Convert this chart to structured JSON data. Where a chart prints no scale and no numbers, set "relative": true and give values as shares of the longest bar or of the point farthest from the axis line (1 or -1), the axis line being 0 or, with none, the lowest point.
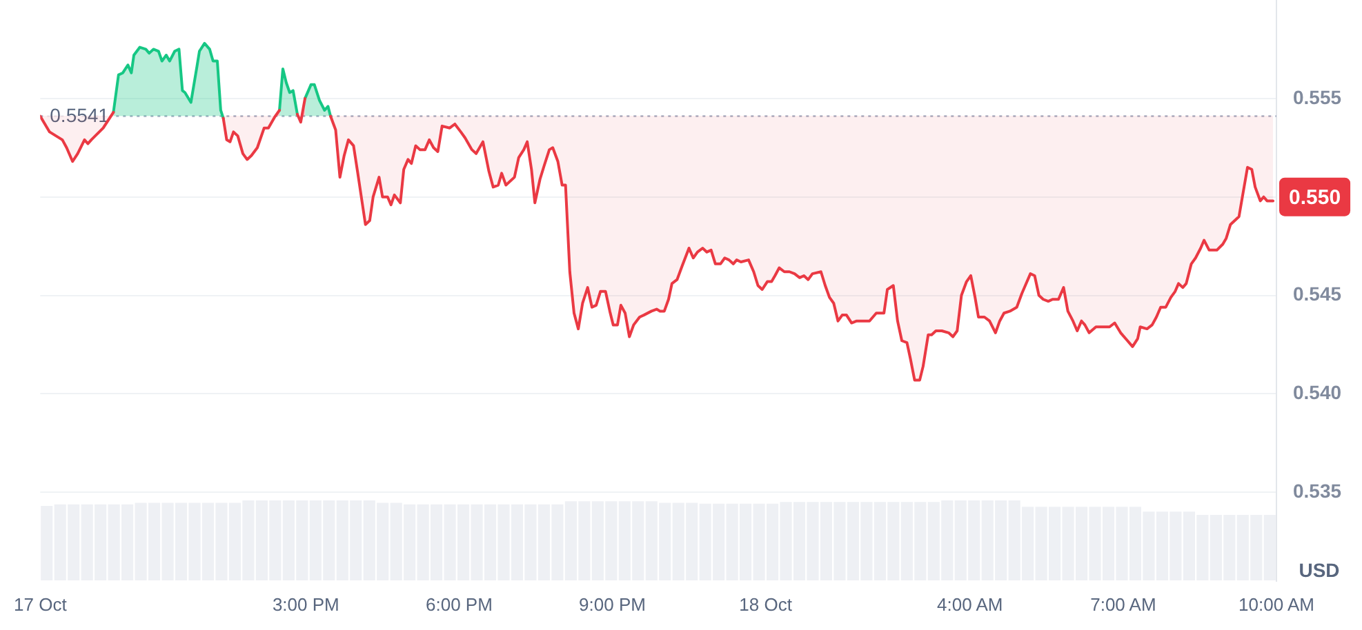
{
  "chart_data": [
    {
      "type": "line",
      "ylabel": "USD",
      "x": [
        "--10-17T09:48",
        "--10-17T09:59",
        "--10-17T10:14",
        "--10-17T10:19",
        "--10-17T10:26",
        "--10-17T10:32",
        "--10-17T10:40",
        "--10-17T10:44",
        "--10-17T10:48",
        "--10-17T11:02",
        "--10-17T11:14",
        "--10-17T11:20",
        "--10-17T11:25",
        "--10-17T11:31",
        "--10-17T11:35",
        "--10-17T11:38",
        "--10-17T11:45",
        "--10-17T11:52",
        "--10-17T11:56",
        "--10-17T12:01",
        "--10-17T12:07",
        "--10-17T12:11",
        "--10-17T12:16",
        "--10-17T12:20",
        "--10-17T12:26",
        "--10-17T12:31",
        "--10-17T12:35",
        "--10-17T12:38",
        "--10-17T12:45",
        "--10-17T12:52",
        "--10-17T12:55",
        "--10-17T13:01",
        "--10-17T13:07",
        "--10-17T13:11",
        "--10-17T13:16",
        "--10-17T13:20",
        "--10-17T13:23",
        "--10-17T13:27",
        "--10-17T13:31",
        "--10-17T13:35",
        "--10-17T13:40",
        "--10-17T13:46",
        "--10-17T13:51",
        "--10-17T13:56",
        "--10-17T14:03",
        "--10-17T14:11",
        "--10-17T14:16",
        "--10-17T14:24",
        "--10-17T14:29",
        "--10-17T14:33",
        "--10-17T14:37",
        "--10-17T14:41",
        "--10-17T14:45",
        "--10-17T14:50",
        "--10-17T14:54",
        "--10-17T14:59",
        "--10-17T15:06",
        "--10-17T15:10",
        "--10-17T15:16",
        "--10-17T15:22",
        "--10-17T15:26",
        "--10-17T15:29",
        "--10-17T15:35",
        "--10-17T15:40",
        "--10-17T15:45",
        "--10-17T15:50",
        "--10-17T15:56",
        "--10-17T16:01",
        "--10-17T16:10",
        "--10-17T16:15",
        "--10-17T16:19",
        "--10-17T16:26",
        "--10-17T16:30",
        "--10-17T16:36",
        "--10-17T16:40",
        "--10-17T16:44",
        "--10-17T16:51",
        "--10-17T16:55",
        "--10-17T17:00",
        "--10-17T17:04",
        "--10-17T17:09",
        "--10-17T17:14",
        "--10-17T17:20",
        "--10-17T17:25",
        "--10-17T17:30",
        "--10-17T17:35",
        "--10-17T17:40",
        "--10-17T17:49",
        "--10-17T17:55",
        "--10-17T18:02",
        "--10-17T18:07",
        "--10-17T18:15",
        "--10-17T18:20",
        "--10-17T18:28",
        "--10-17T18:35",
        "--10-17T18:40",
        "--10-17T18:46",
        "--10-17T18:50",
        "--10-17T18:55",
        "--10-17T19:05",
        "--10-17T19:10",
        "--10-17T19:16",
        "--10-17T19:20",
        "--10-17T19:25",
        "--10-17T19:29",
        "--10-17T19:35",
        "--10-17T19:40",
        "--10-17T19:46",
        "--10-17T19:50",
        "--10-17T19:56",
        "--10-17T20:01",
        "--10-17T20:05",
        "--10-17T20:10",
        "--10-17T20:15",
        "--10-17T20:20",
        "--10-17T20:25",
        "--10-17T20:31",
        "--10-17T20:36",
        "--10-17T20:41",
        "--10-17T20:46",
        "--10-17T20:52",
        "--10-17T20:57",
        "--10-17T21:01",
        "--10-17T21:06",
        "--10-17T21:10",
        "--10-17T21:15",
        "--10-17T21:20",
        "--10-17T21:25",
        "--10-17T21:32",
        "--10-17T21:37",
        "--10-17T21:46",
        "--10-17T21:52",
        "--10-17T21:56",
        "--10-17T22:01",
        "--10-17T22:06",
        "--10-17T22:10",
        "--10-17T22:16",
        "--10-17T22:22",
        "--10-17T22:30",
        "--10-17T22:35",
        "--10-17T22:40",
        "--10-17T22:46",
        "--10-17T22:51",
        "--10-17T22:56",
        "--10-17T23:01",
        "--10-17T23:07",
        "--10-17T23:12",
        "--10-17T23:17",
        "--10-17T23:22",
        "--10-17T23:26",
        "--10-17T23:31",
        "--10-17T23:40",
        "--10-17T23:46",
        "--10-17T23:51",
        "--10-17T23:56",
        "--10-18T00:02",
        "--10-18T00:07",
        "--10-18T00:11",
        "--10-18T00:16",
        "--10-18T00:22",
        "--10-18T00:28",
        "--10-18T00:34",
        "--10-18T00:40",
        "--10-18T00:45",
        "--10-18T00:50",
        "--10-18T00:55",
        "--10-18T01:05",
        "--10-18T01:10",
        "--10-18T01:15",
        "--10-18T01:20",
        "--10-18T01:25",
        "--10-18T01:30",
        "--10-18T01:35",
        "--10-18T01:41",
        "--10-18T01:47",
        "--10-18T01:55",
        "--10-18T02:02",
        "--10-18T02:10",
        "--10-18T02:19",
        "--10-18T02:23",
        "--10-18T02:30",
        "--10-18T02:35",
        "--10-18T02:40",
        "--10-18T02:46",
        "--10-18T02:50",
        "--10-18T02:55",
        "--10-18T03:01",
        "--10-18T03:05",
        "--10-18T03:11",
        "--10-18T03:15",
        "--10-18T03:20",
        "--10-18T03:27",
        "--10-18T03:35",
        "--10-18T03:40",
        "--10-18T03:45",
        "--10-18T03:50",
        "--10-18T03:56",
        "--10-18T04:01",
        "--10-18T04:06",
        "--10-18T04:10",
        "--10-18T04:17",
        "--10-18T04:23",
        "--10-18T04:30",
        "--10-18T04:35",
        "--10-18T04:40",
        "--10-18T04:47",
        "--10-18T04:55",
        "--10-18T05:01",
        "--10-18T05:05",
        "--10-18T05:11",
        "--10-18T05:16",
        "--10-18T05:21",
        "--10-18T05:26",
        "--10-18T05:32",
        "--10-18T05:37",
        "--10-18T05:44",
        "--10-18T05:50",
        "--10-18T05:55",
        "--10-18T06:01",
        "--10-18T06:06",
        "--10-18T06:11",
        "--10-18T06:15",
        "--10-18T06:20",
        "--10-18T06:28",
        "--10-18T06:36",
        "--10-18T06:44",
        "--10-18T06:50",
        "--10-18T06:57",
        "--10-18T07:05",
        "--10-18T07:11",
        "--10-18T07:17",
        "--10-18T07:20",
        "--10-18T07:28",
        "--10-18T07:34",
        "--10-18T07:39",
        "--10-18T07:44",
        "--10-18T07:50",
        "--10-18T07:56",
        "--10-18T08:01",
        "--10-18T08:05",
        "--10-18T08:10",
        "--10-18T08:14",
        "--10-18T08:20",
        "--10-18T08:25",
        "--10-18T08:31",
        "--10-18T08:35",
        "--10-18T08:41",
        "--10-18T08:50",
        "--10-18T08:57",
        "--10-18T09:01",
        "--10-18T09:06",
        "--10-18T09:11",
        "--10-18T09:16",
        "--10-18T09:20",
        "--10-18T09:26",
        "--10-18T09:31",
        "--10-18T09:35",
        "--10-18T09:41",
        "--10-18T09:45",
        "--10-18T09:49",
        "--10-18T09:56"
      ],
      "series": [
        {
          "color": "#ea3943",
          "values": [
            0.5541,
            0.5533,
            0.5529,
            0.5525,
            0.5518,
            0.5522,
            0.5529,
            0.5527,
            0.5529,
            0.5535,
            0.5543,
            null,
            null,
            null,
            null,
            null,
            null,
            null,
            null,
            null,
            null,
            null,
            null,
            null,
            null,
            null,
            null,
            null,
            null,
            null,
            null,
            null,
            null,
            null,
            null,
            null,
            0.554,
            0.5529,
            0.5528,
            0.5533,
            0.5531,
            0.5522,
            0.5519,
            0.5521,
            0.5525,
            0.5535,
            0.5535,
            0.5541,
            0.5544,
            null,
            null,
            null,
            null,
            0.5542,
            0.5538,
            0.555,
            null,
            null,
            null,
            null,
            null,
            0.5541,
            0.5534,
            0.551,
            0.5521,
            0.5529,
            0.5526,
            0.5512,
            0.5486,
            0.5488,
            0.55,
            0.551,
            0.55,
            0.55,
            0.5496,
            0.5501,
            0.5497,
            0.5514,
            0.5519,
            0.5517,
            0.5526,
            0.5524,
            0.5524,
            0.5529,
            0.5525,
            0.5523,
            0.5536,
            0.5535,
            0.5537,
            0.5533,
            0.553,
            0.5524,
            0.5522,
            0.5528,
            0.5513,
            0.5505,
            0.5506,
            0.5512,
            0.5506,
            0.551,
            0.552,
            0.5524,
            0.5528,
            0.5514,
            0.5497,
            0.5509,
            0.5516,
            0.5524,
            0.5525,
            0.5518,
            0.5506,
            0.5506,
            0.5462,
            0.5441,
            0.5433,
            0.5446,
            0.5454,
            0.5444,
            0.5445,
            0.5452,
            0.5452,
            0.5442,
            0.5435,
            0.5435,
            0.5445,
            0.5441,
            0.5429,
            0.5435,
            0.5439,
            0.544,
            0.5442,
            0.5443,
            0.5442,
            0.5442,
            0.5448,
            0.5456,
            0.5458,
            0.5465,
            0.5474,
            0.5469,
            0.5472,
            0.5474,
            0.5472,
            0.5473,
            0.5466,
            0.5466,
            0.5469,
            0.5468,
            0.5466,
            0.5468,
            0.5467,
            0.5468,
            0.5462,
            0.5455,
            0.5453,
            0.5457,
            0.5457,
            0.546,
            0.5464,
            0.5462,
            0.5462,
            0.5461,
            0.5459,
            0.546,
            0.5458,
            0.5461,
            0.5462,
            0.5455,
            0.5449,
            0.5446,
            0.5437,
            0.544,
            0.544,
            0.5436,
            0.5437,
            0.5437,
            0.5437,
            0.5441,
            0.5441,
            0.5453,
            0.5455,
            0.5437,
            0.5427,
            0.5426,
            0.5418,
            0.5407,
            0.5407,
            0.5414,
            0.543,
            0.543,
            0.5432,
            0.5432,
            0.5431,
            0.5429,
            0.5432,
            0.545,
            0.5457,
            0.546,
            0.5449,
            0.5439,
            0.5439,
            0.5437,
            0.5431,
            0.5437,
            0.5441,
            0.5442,
            0.5444,
            0.5451,
            0.5455,
            0.5461,
            0.546,
            0.545,
            0.5448,
            0.5447,
            0.5448,
            0.5448,
            0.5454,
            0.5442,
            0.5437,
            0.5432,
            0.5437,
            0.5435,
            0.5431,
            0.5434,
            0.5434,
            0.5434,
            0.5436,
            0.5431,
            0.5427,
            0.5424,
            0.5428,
            0.5434,
            0.5433,
            0.5435,
            0.5439,
            0.5444,
            0.5444,
            0.5449,
            0.5452,
            0.5456,
            0.5454,
            0.5456,
            0.5466,
            0.5469,
            0.5474,
            0.5478,
            0.5473,
            0.5473,
            0.5476,
            0.5479,
            0.5486,
            0.5488,
            0.549,
            0.55,
            0.5515,
            0.5514,
            0.5505,
            0.5498,
            0.55,
            0.5498,
            0.5498
          ]
        },
        {
          "color": "#16c784",
          "x": [
            "--10-17T11:14",
            "--10-17T11:20",
            "--10-17T11:25",
            "--10-17T11:31",
            "--10-17T11:35",
            "--10-17T11:38",
            "--10-17T11:45",
            "--10-17T11:52",
            "--10-17T11:56",
            "--10-17T12:01",
            "--10-17T12:07",
            "--10-17T12:11",
            "--10-17T12:16",
            "--10-17T12:20",
            "--10-17T12:26",
            "--10-17T12:31",
            "--10-17T12:35",
            "--10-17T12:38",
            "--10-17T12:45",
            "--10-17T12:52",
            "--10-17T12:55",
            "--10-17T13:01",
            "--10-17T13:07",
            "--10-17T13:11",
            "--10-17T13:16",
            "--10-17T13:20",
            "--10-17T13:23",
            "--10-17T13:27",
            "--10-17T13:31",
            "--10-17T13:35",
            "--10-17T13:40",
            "--10-17T13:46",
            "--10-17T13:51",
            "--10-17T13:56",
            "--10-17T14:03",
            "--10-17T14:11",
            "--10-17T14:16",
            "--10-17T14:24",
            "--10-17T14:29",
            "--10-17T14:33",
            "--10-17T14:37",
            "--10-17T14:41",
            "--10-17T14:45",
            "--10-17T14:50",
            "--10-17T14:54",
            "--10-17T14:59",
            "--10-17T15:06",
            "--10-17T15:10",
            "--10-17T15:16",
            "--10-17T15:22",
            "--10-17T15:26",
            "--10-17T15:29"
          ],
          "values": [
            0.5543,
            0.5562,
            0.5563,
            0.5567,
            0.5563,
            0.5572,
            0.5576,
            0.5575,
            0.5573,
            0.5575,
            0.5574,
            0.5569,
            0.5572,
            0.5569,
            0.5574,
            0.5575,
            0.5554,
            0.5553,
            0.5548,
            0.5566,
            0.5574,
            0.5578,
            0.5575,
            0.5569,
            0.5569,
            0.5544,
            0.554,
            null,
            null,
            null,
            null,
            null,
            null,
            null,
            null,
            null,
            null,
            null,
            0.5544,
            0.5565,
            0.5558,
            0.5553,
            0.5554,
            0.5542,
            null,
            0.555,
            0.5557,
            0.5557,
            0.5549,
            0.5544,
            0.5546,
            0.5541
          ]
        }
      ],
      "xlim": [
        "--10-17T09:48",
        "--10-18T10:00"
      ],
      "xticks": [
        {
          "value": "--10-17T09:48",
          "label": "17 Oct"
        },
        {
          "value": "--10-17T15:00",
          "label": "3:00 PM"
        },
        {
          "value": "--10-17T18:00",
          "label": "6:00 PM"
        },
        {
          "value": "--10-17T21:00",
          "label": "9:00 PM"
        },
        {
          "value": "--10-18T00:00",
          "label": "18 Oct"
        },
        {
          "value": "--10-18T04:00",
          "label": "4:00 AM"
        },
        {
          "value": "--10-18T07:00",
          "label": "7:00 AM"
        },
        {
          "value": "--10-18T10:00",
          "label": "10:00 AM"
        }
      ],
      "ylim": [
        0.5305,
        0.56
      ],
      "yticks": [
        0.535,
        {
          "value": 0.54,
          "label": "0.540"
        },
        0.545,
        {
          "value": 0.55,
          "label": null
        },
        0.555
      ],
      "grid": "y",
      "ref_lines": [
        {
          "axis": "y",
          "value": 0.5541,
          "label": "0.5541",
          "line_style": "dotted",
          "color": "#a6b0c3"
        }
      ],
      "annotations": [
        {
          "text": "0.550",
          "x": "--10-18T09:56",
          "y": 0.55
        }
      ]
    },
    {
      "type": "bar",
      "relative": true,
      "tick_labels": false,
      "color": "#eef0f4",
      "categories": [
        null,
        null,
        null,
        null,
        null,
        null,
        null,
        null,
        null,
        null,
        null,
        null,
        null,
        null,
        null,
        null,
        null,
        null,
        null,
        null,
        null,
        null,
        null,
        null,
        null,
        null,
        null,
        null,
        null,
        null,
        null,
        null,
        null,
        null,
        null,
        null,
        null,
        null,
        null,
        null,
        null,
        null,
        null,
        null,
        null,
        null,
        null,
        null,
        null,
        null,
        null,
        null,
        null,
        null,
        null,
        null,
        null,
        null,
        null,
        null,
        null,
        null,
        null,
        null,
        null,
        null,
        null,
        null,
        null,
        null,
        null,
        null,
        null,
        null,
        null,
        null,
        null,
        null,
        null,
        null,
        null,
        null,
        null,
        null,
        null,
        null,
        null,
        null,
        null,
        null,
        null,
        null
      ],
      "values": [
        0.93,
        0.95,
        0.95,
        0.95,
        0.95,
        0.95,
        0.95,
        0.97,
        0.97,
        0.97,
        0.97,
        0.97,
        0.97,
        0.97,
        0.97,
        1,
        1,
        1,
        1,
        1,
        1,
        1,
        1,
        1,
        1,
        0.97,
        0.97,
        0.95,
        0.95,
        0.95,
        0.95,
        0.95,
        0.95,
        0.95,
        0.95,
        0.95,
        0.95,
        0.95,
        0.95,
        0.99,
        0.99,
        0.99,
        0.99,
        0.99,
        0.99,
        0.99,
        0.97,
        0.97,
        0.97,
        0.96,
        0.96,
        0.96,
        0.96,
        0.96,
        0.96,
        0.98,
        0.98,
        0.98,
        0.98,
        0.98,
        0.98,
        0.98,
        0.98,
        0.98,
        0.98,
        0.98,
        0.98,
        1,
        1,
        1,
        1,
        1,
        1,
        0.92,
        0.92,
        0.92,
        0.92,
        0.92,
        0.92,
        0.92,
        0.92,
        0.92,
        0.86,
        0.86,
        0.86,
        0.86,
        0.82,
        0.82,
        0.82,
        0.82,
        0.82,
        0.82
      ]
    }
  ]
}
